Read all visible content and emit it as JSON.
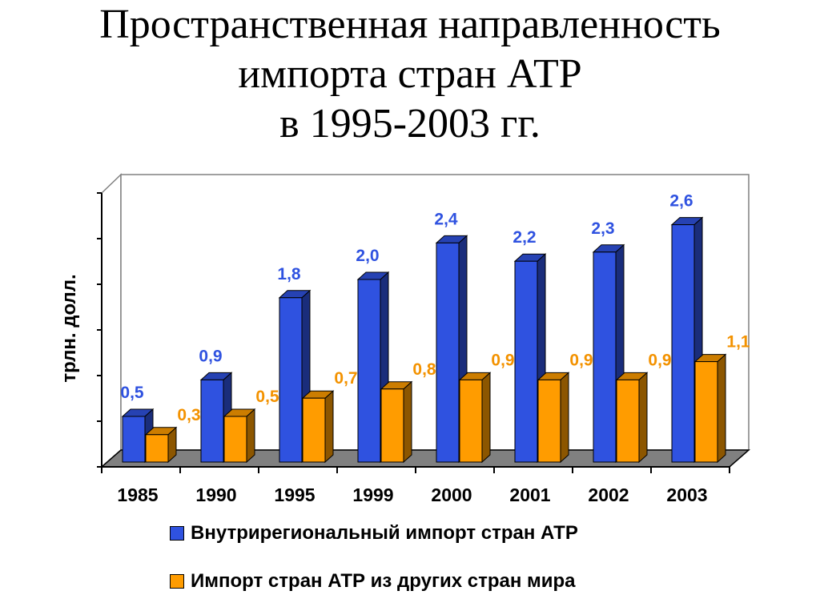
{
  "title_lines": [
    "Пространственная направленность",
    "импорта стран АТР",
    "в 1995-2003 гг."
  ],
  "colors": {
    "series1": "#2f52e0",
    "series2": "#ff9c00",
    "series1_label": "#2f52e0",
    "series2_label": "#f39200",
    "floor": "#808080"
  },
  "chart_data": {
    "type": "bar",
    "style": "3d-clustered-column",
    "ylabel": "трлн. долл.",
    "categories": [
      "1985",
      "1990",
      "1995",
      "1999",
      "2000",
      "2001",
      "2002",
      "2003"
    ],
    "ylim": [
      0,
      3
    ],
    "y_tick_count": 6,
    "y_tick_labels_shown": false,
    "grid": false,
    "legend_position": "bottom",
    "series": [
      {
        "name": "Внутрирегиональный импорт стран АТР",
        "values": [
          0.5,
          0.9,
          1.8,
          2.0,
          2.4,
          2.2,
          2.3,
          2.6
        ],
        "labels": [
          "0,5",
          "0,9",
          "1,8",
          "2,0",
          "2,4",
          "2,2",
          "2,3",
          "2,6"
        ]
      },
      {
        "name": "Импорт стран АТР из других стран мира",
        "values": [
          0.3,
          0.5,
          0.7,
          0.8,
          0.9,
          0.9,
          0.9,
          1.1
        ],
        "labels": [
          "0,3",
          "0,5",
          "0,7",
          "0,8",
          "0,9",
          "0,9",
          "0,9",
          "1,1"
        ]
      }
    ]
  }
}
